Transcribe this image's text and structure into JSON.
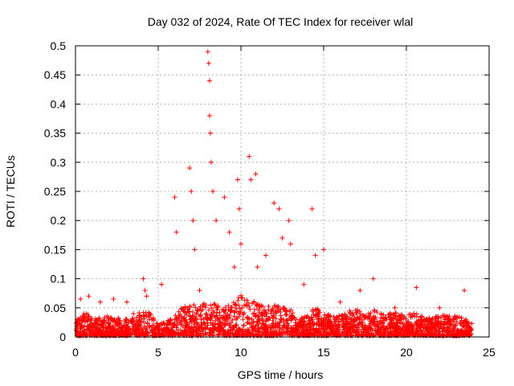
{
  "chart_data": {
    "type": "scatter",
    "title": "Day 032 of 2024, Rate Of TEC Index for receiver wlal",
    "xlabel": "GPS time / hours",
    "ylabel": "ROTI / TECUs",
    "xlim": [
      0,
      25
    ],
    "ylim": [
      0,
      0.5
    ],
    "xticks": [
      0,
      5,
      10,
      15,
      20,
      25
    ],
    "yticks": [
      0,
      0.05,
      0.1,
      0.15,
      0.2,
      0.25,
      0.3,
      0.35,
      0.4,
      0.45,
      0.5
    ],
    "xtick_labels": [
      "0",
      "5",
      "10",
      "15",
      "20",
      "25"
    ],
    "ytick_labels": [
      "0",
      "0.05",
      "0.1",
      "0.15",
      "0.2",
      "0.25",
      "0.3",
      "0.35",
      "0.4",
      "0.45",
      "0.5"
    ],
    "grid": true,
    "marker": "+",
    "color": "#ff0000",
    "series": [
      {
        "x": [
          0.1,
          0.3,
          0.8,
          1.5,
          2.3,
          3.1,
          3.5,
          4.1,
          4.2,
          4.3,
          5.2,
          6.0,
          6.1,
          6.9,
          7.0,
          7.1,
          7.2,
          7.5,
          8.0,
          8.05,
          8.1,
          8.1,
          8.15,
          8.2,
          8.3,
          8.5,
          9.0,
          9.3,
          9.6,
          9.8,
          9.9,
          10.0,
          10.5,
          10.6,
          10.9,
          11.0,
          11.5,
          12.0,
          12.3,
          12.5,
          12.9,
          13.0,
          13.8,
          14.3,
          14.5,
          15.0,
          16.0,
          17.2,
          18.0,
          19.3,
          20.6,
          22.0,
          23.5
        ],
        "y": [
          0.03,
          0.065,
          0.07,
          0.06,
          0.065,
          0.06,
          0.04,
          0.1,
          0.08,
          0.07,
          0.09,
          0.24,
          0.18,
          0.29,
          0.25,
          0.2,
          0.15,
          0.08,
          0.49,
          0.47,
          0.44,
          0.38,
          0.35,
          0.3,
          0.25,
          0.2,
          0.24,
          0.18,
          0.12,
          0.27,
          0.22,
          0.16,
          0.31,
          0.27,
          0.28,
          0.12,
          0.14,
          0.23,
          0.22,
          0.17,
          0.2,
          0.16,
          0.09,
          0.22,
          0.14,
          0.15,
          0.06,
          0.08,
          0.1,
          0.05,
          0.085,
          0.05,
          0.08
        ]
      }
    ],
    "density_hours": [
      0,
      0.5,
      1,
      1.5,
      2,
      2.5,
      3,
      3.5,
      4,
      4.5,
      5,
      5.5,
      6,
      6.5,
      7,
      7.5,
      8,
      8.5,
      9,
      9.5,
      10,
      10.5,
      11,
      11.5,
      12,
      12.5,
      13,
      13.5,
      14,
      14.5,
      15,
      15.5,
      16,
      16.5,
      17,
      17.5,
      18,
      18.5,
      19,
      19.5,
      20,
      20.5,
      21,
      21.5,
      22,
      22.5,
      23,
      23.5,
      24
    ],
    "density_base_roti": [
      0.025,
      0.04,
      0.035,
      0.03,
      0.035,
      0.03,
      0.03,
      0.03,
      0.045,
      0.04,
      0.02,
      0.025,
      0.035,
      0.05,
      0.055,
      0.05,
      0.06,
      0.055,
      0.05,
      0.06,
      0.07,
      0.065,
      0.055,
      0.05,
      0.055,
      0.05,
      0.045,
      0.03,
      0.035,
      0.05,
      0.04,
      0.035,
      0.04,
      0.045,
      0.045,
      0.04,
      0.045,
      0.04,
      0.04,
      0.04,
      0.035,
      0.04,
      0.035,
      0.03,
      0.035,
      0.035,
      0.035,
      0.03,
      0.02
    ]
  }
}
